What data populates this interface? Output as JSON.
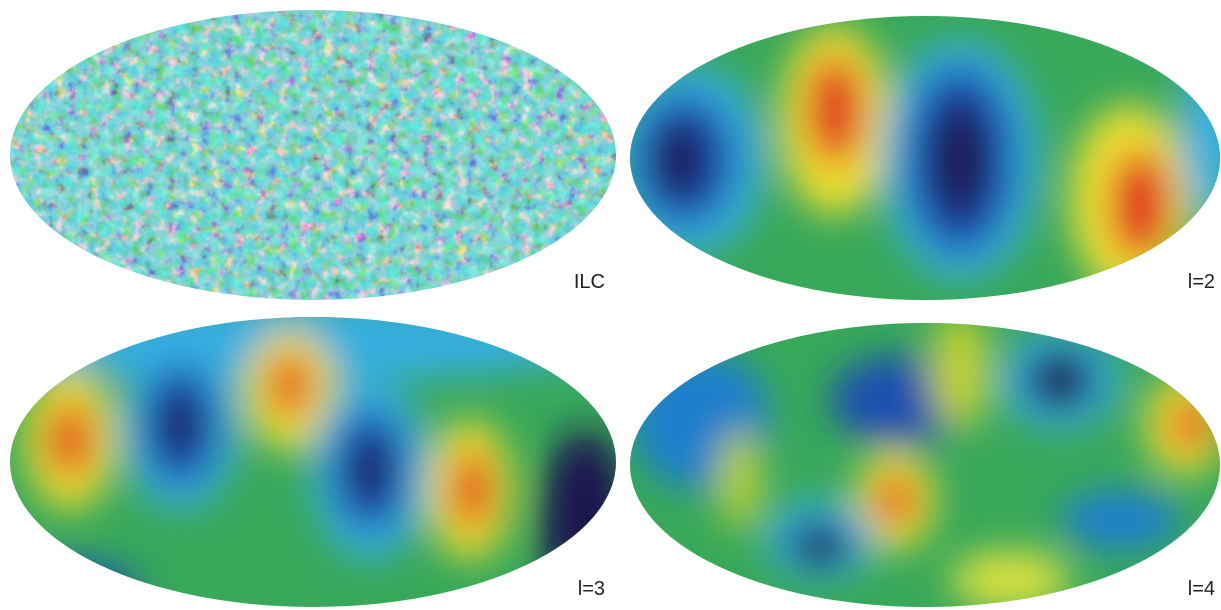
{
  "panels": [
    {
      "label": "ILC"
    },
    {
      "label": "l=2"
    },
    {
      "label": "l=3"
    },
    {
      "label": "l=4"
    }
  ]
}
